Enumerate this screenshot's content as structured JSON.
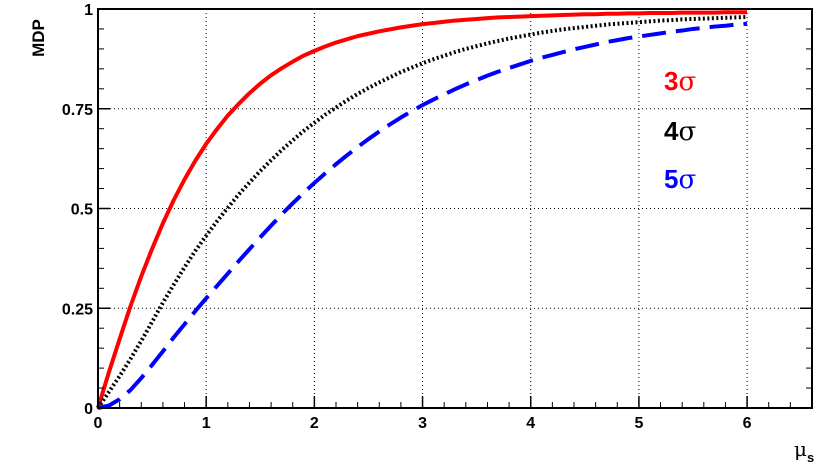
{
  "chart_data": {
    "type": "line",
    "title": "",
    "xlabel": "μ",
    "xlabel_sub": "s",
    "ylabel": "MDP",
    "xlim": [
      0,
      6.6
    ],
    "ylim": [
      0,
      1
    ],
    "x_ticks": [
      "0",
      "1",
      "2",
      "3",
      "4",
      "5",
      "6"
    ],
    "y_ticks": [
      "0",
      "0.25",
      "0.5",
      "0.75",
      "1"
    ],
    "grid": true,
    "legend_position": "right",
    "x": [
      0,
      0.1,
      0.2,
      0.3,
      0.4,
      0.5,
      0.6,
      0.7,
      0.8,
      0.9,
      1.0,
      1.1,
      1.2,
      1.3,
      1.4,
      1.5,
      1.6,
      1.7,
      1.8,
      1.9,
      2.0,
      2.1,
      2.2,
      2.3,
      2.4,
      2.5,
      2.6,
      2.7,
      2.8,
      2.9,
      3.0,
      3.1,
      3.2,
      3.3,
      3.4,
      3.5,
      3.6,
      3.7,
      3.8,
      3.9,
      4.0,
      4.1,
      4.2,
      4.3,
      4.4,
      4.5,
      4.6,
      4.7,
      4.8,
      4.9,
      5.0,
      5.1,
      5.2,
      5.3,
      5.4,
      5.5,
      5.6,
      5.7,
      5.8,
      5.9,
      6.0
    ],
    "series": [
      {
        "name": "3σ",
        "label_num": "3",
        "label_sym": "σ",
        "color": "#ff0000",
        "style": "solid",
        "values": [
          0,
          0.089,
          0.173,
          0.255,
          0.33,
          0.399,
          0.463,
          0.521,
          0.573,
          0.62,
          0.662,
          0.699,
          0.733,
          0.762,
          0.789,
          0.813,
          0.834,
          0.852,
          0.868,
          0.883,
          0.895,
          0.906,
          0.916,
          0.924,
          0.932,
          0.938,
          0.944,
          0.949,
          0.954,
          0.958,
          0.962,
          0.965,
          0.968,
          0.971,
          0.973,
          0.975,
          0.977,
          0.979,
          0.98,
          0.981,
          0.982,
          0.983,
          0.984,
          0.985,
          0.986,
          0.987,
          0.987,
          0.988,
          0.988,
          0.989,
          0.989,
          0.99,
          0.99,
          0.99,
          0.991,
          0.991,
          0.991,
          0.991,
          0.992,
          0.992,
          0.992
        ]
      },
      {
        "name": "4σ",
        "label_num": "4",
        "label_sym": "σ",
        "color": "#000000",
        "style": "dotted",
        "values": [
          0,
          0.04,
          0.08,
          0.123,
          0.168,
          0.216,
          0.264,
          0.309,
          0.353,
          0.394,
          0.432,
          0.468,
          0.502,
          0.535,
          0.565,
          0.594,
          0.621,
          0.647,
          0.671,
          0.694,
          0.715,
          0.735,
          0.753,
          0.771,
          0.787,
          0.802,
          0.816,
          0.829,
          0.842,
          0.853,
          0.864,
          0.874,
          0.883,
          0.892,
          0.9,
          0.907,
          0.914,
          0.92,
          0.926,
          0.931,
          0.936,
          0.941,
          0.945,
          0.949,
          0.952,
          0.955,
          0.958,
          0.961,
          0.963,
          0.965,
          0.967,
          0.969,
          0.971,
          0.972,
          0.974,
          0.975,
          0.976,
          0.977,
          0.978,
          0.979,
          0.98
        ]
      },
      {
        "name": "5σ",
        "label_num": "5",
        "label_sym": "σ",
        "color": "#0000ff",
        "style": "dashed",
        "values": [
          0,
          0.006,
          0.022,
          0.045,
          0.075,
          0.108,
          0.142,
          0.177,
          0.21,
          0.243,
          0.275,
          0.306,
          0.337,
          0.368,
          0.398,
          0.428,
          0.457,
          0.486,
          0.513,
          0.539,
          0.564,
          0.588,
          0.611,
          0.633,
          0.654,
          0.674,
          0.693,
          0.711,
          0.728,
          0.744,
          0.759,
          0.773,
          0.786,
          0.799,
          0.811,
          0.822,
          0.833,
          0.843,
          0.852,
          0.861,
          0.87,
          0.878,
          0.885,
          0.892,
          0.899,
          0.905,
          0.911,
          0.917,
          0.922,
          0.927,
          0.931,
          0.935,
          0.939,
          0.943,
          0.946,
          0.95,
          0.953,
          0.956,
          0.958,
          0.961,
          0.963
        ]
      }
    ]
  }
}
